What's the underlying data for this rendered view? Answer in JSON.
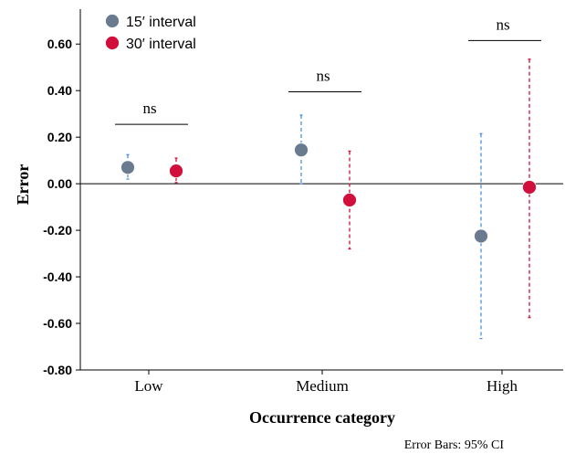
{
  "chart_data": {
    "type": "scatter",
    "categories": [
      "Low",
      "Medium",
      "High"
    ],
    "xlabel": "Occurrence category",
    "ylabel": "Error",
    "ylim": [
      -0.8,
      0.75
    ],
    "yticks": [
      -0.8,
      -0.6,
      -0.4,
      -0.2,
      0.0,
      0.2,
      0.4,
      0.6
    ],
    "ytick_labels": [
      "-0.80",
      "-0.60",
      "-0.40",
      "-0.20",
      "0.00",
      "0.20",
      "0.40",
      "0.60"
    ],
    "reference_line": 0.0,
    "grid": false,
    "legend_position": "top-left",
    "series": [
      {
        "name": "15′ interval",
        "color": "#6b7b8f",
        "error_color": "#4a90e2",
        "values": [
          0.07,
          0.145,
          -0.225
        ],
        "ci_low": [
          0.02,
          0.0,
          -0.665
        ],
        "ci_high": [
          0.125,
          0.295,
          0.215
        ]
      },
      {
        "name": "30′ interval",
        "color": "#d10f3a",
        "error_color": "#d10f3a",
        "values": [
          0.055,
          -0.07,
          -0.015
        ],
        "ci_low": [
          0.005,
          -0.28,
          -0.575
        ],
        "ci_high": [
          0.11,
          0.14,
          0.535
        ]
      }
    ],
    "annotations": [
      {
        "category": "Low",
        "text": "ns",
        "y": 0.255
      },
      {
        "category": "Medium",
        "text": "ns",
        "y": 0.395
      },
      {
        "category": "High",
        "text": "ns",
        "y": 0.615
      }
    ],
    "footnote": "Error Bars: 95% CI"
  }
}
